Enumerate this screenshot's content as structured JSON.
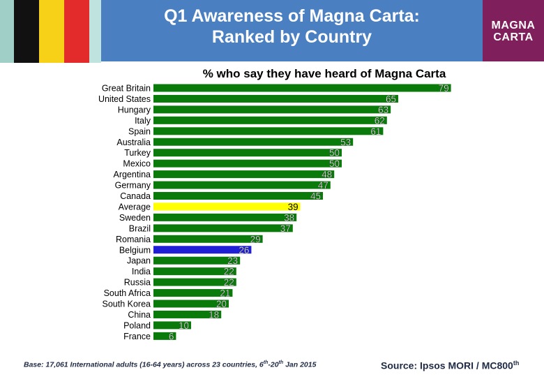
{
  "header": {
    "title_line1": "Q1 Awareness of Magna Carta:",
    "title_line2": "Ranked by Country",
    "logo_line1": "MAGNA",
    "logo_line2": "CARTA",
    "header_color": "#4a7fc1",
    "logo_color": "#7f1f5b"
  },
  "chart_data": {
    "type": "bar",
    "orientation": "horizontal",
    "title": "% who say they have heard of Magna Carta",
    "categories": [
      "Great Britain",
      "United States",
      "Hungary",
      "Italy",
      "Spain",
      "Australia",
      "Turkey",
      "Mexico",
      "Argentina",
      "Germany",
      "Canada",
      "Average",
      "Sweden",
      "Brazil",
      "Romania",
      "Belgium",
      "Japan",
      "India",
      "Russia",
      "South Africa",
      "South Korea",
      "China",
      "Poland",
      "France"
    ],
    "values": [
      79,
      65,
      63,
      62,
      61,
      53,
      50,
      50,
      48,
      47,
      45,
      39,
      38,
      37,
      29,
      26,
      23,
      22,
      22,
      21,
      20,
      18,
      10,
      6
    ],
    "xlim": [
      0,
      100
    ],
    "bar_colors": {
      "default": "#0a7a0a",
      "Average": "#ffff00",
      "Belgium": "#1f1fd6"
    },
    "grid": false,
    "legend": "none"
  },
  "footer": {
    "base_prefix": "Base: 17,061 International adults (16-64 years) across 23 countries, 6",
    "base_sup1": "th",
    "base_mid": "-20",
    "base_sup2": "th",
    "base_suffix": " Jan 2015",
    "source_text": "Source: Ipsos MORI / MC800",
    "source_sup": "th"
  }
}
